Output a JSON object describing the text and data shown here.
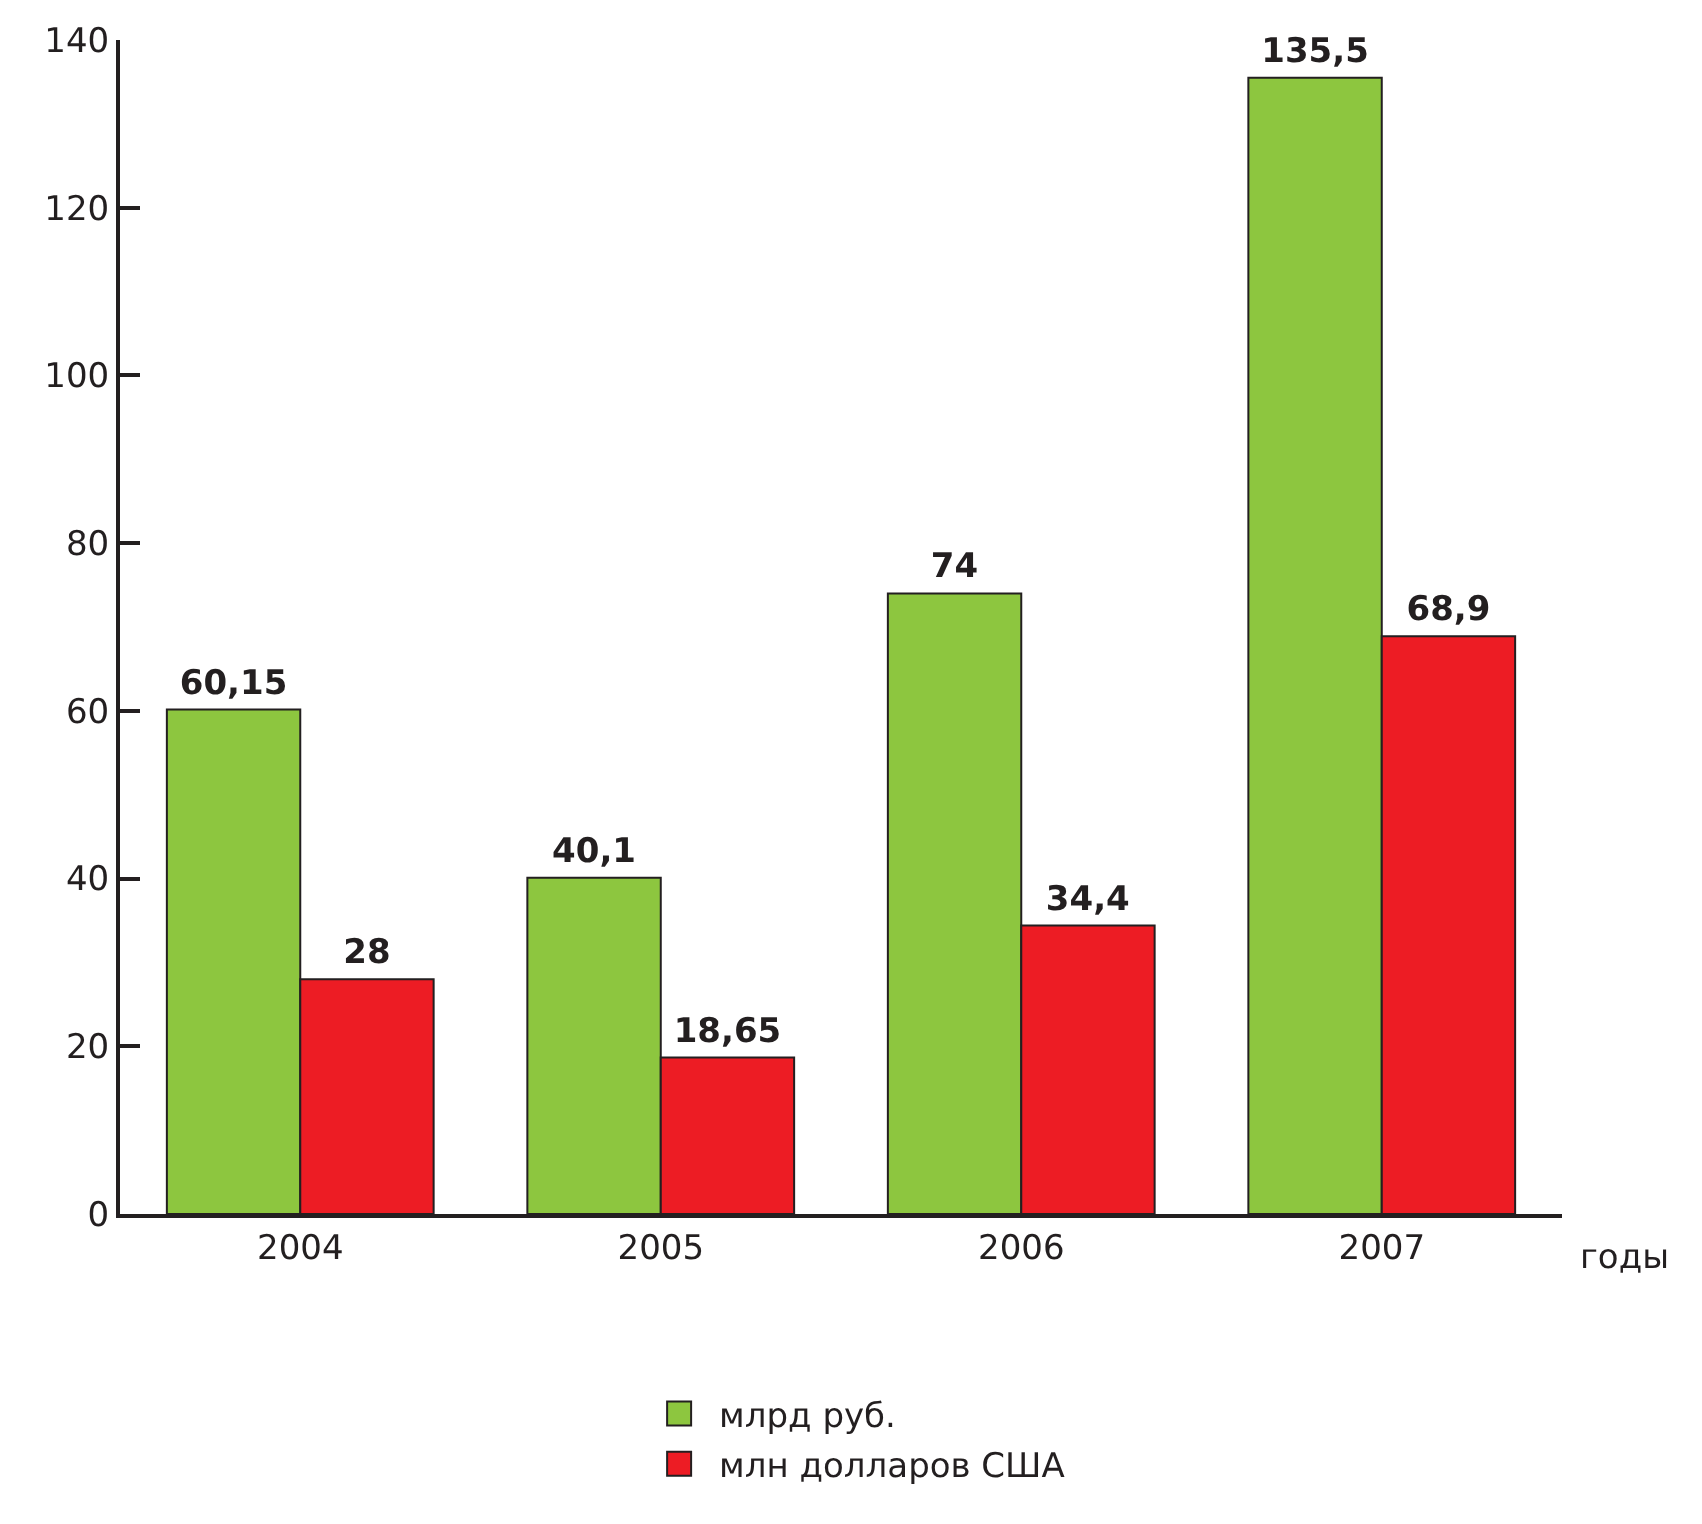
{
  "chart_data": {
    "type": "bar",
    "categories": [
      "2004",
      "2005",
      "2006",
      "2007"
    ],
    "xlabel": "годы",
    "series": [
      {
        "name": "млрд руб.",
        "color": "#8dc63f",
        "values": [
          60.15,
          40.1,
          74,
          135.5
        ],
        "value_labels": [
          "60,15",
          "40,1",
          "74",
          "135,5"
        ]
      },
      {
        "name": "млн долларов США",
        "color": "#ed1c24",
        "values": [
          28,
          18.65,
          34.4,
          68.9
        ],
        "value_labels": [
          "28",
          "18,65",
          "34,4",
          "68,9"
        ]
      }
    ],
    "ylim": [
      0,
      140
    ],
    "yticks": [
      0,
      20,
      40,
      60,
      80,
      100,
      120,
      140
    ],
    "legend": "bottom"
  }
}
